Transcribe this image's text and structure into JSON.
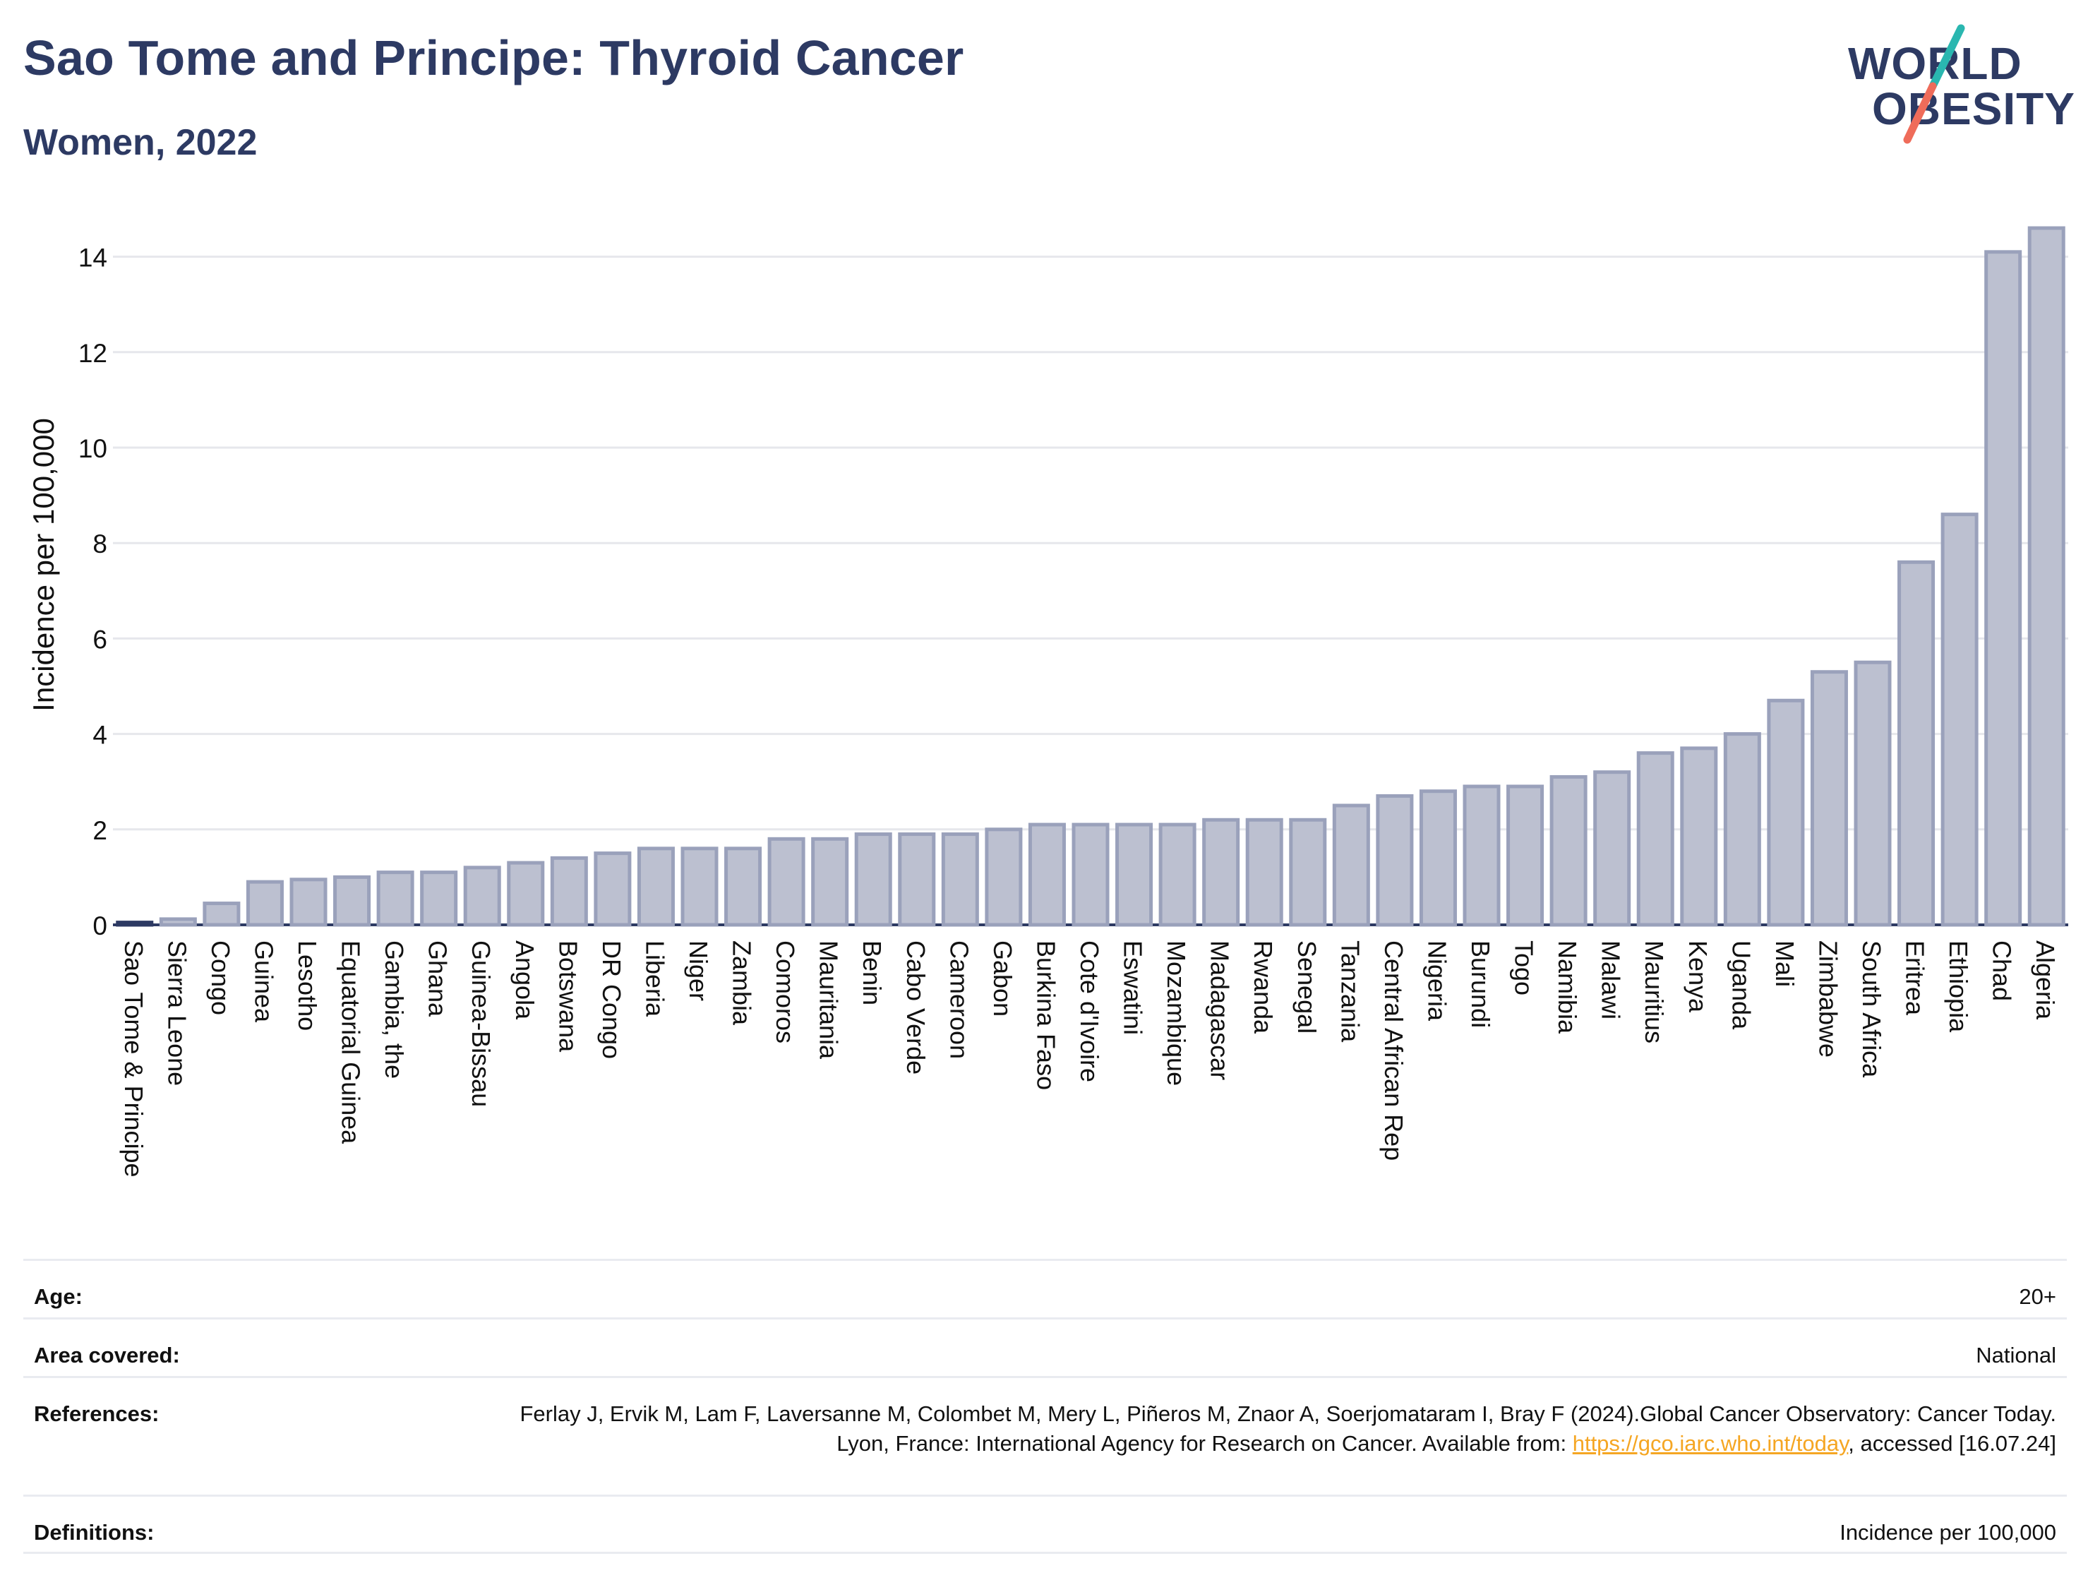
{
  "header": {
    "title": "Sao Tome and Principe: Thyroid Cancer",
    "subtitle": "Women, 2022"
  },
  "logo": {
    "line1": "WORLD",
    "line2": "OBESITY",
    "colors": {
      "text": "#2d3a63",
      "slash_top": "#2ab7b0",
      "slash_bottom": "#ef6c5a"
    }
  },
  "colors": {
    "bar_fill": "#bcc0d0",
    "bar_stroke": "#9aa1bb",
    "highlight": "#2d3a63",
    "grid": "#e6e7ec"
  },
  "chart_data": {
    "type": "bar",
    "ylabel": "Incidence per 100,000",
    "ylim": [
      0,
      15
    ],
    "yticks": [
      0,
      2,
      4,
      6,
      8,
      10,
      12,
      14
    ],
    "grid": true,
    "highlight": "Sao Tome & Principe",
    "categories": [
      "Sao Tome & Principe",
      "Sierra Leone",
      "Congo",
      "Guinea",
      "Lesotho",
      "Equatorial Guinea",
      "Gambia, the",
      "Ghana",
      "Guinea-Bissau",
      "Angola",
      "Botswana",
      "DR Congo",
      "Liberia",
      "Niger",
      "Zambia",
      "Comoros",
      "Mauritania",
      "Benin",
      "Cabo Verde",
      "Cameroon",
      "Gabon",
      "Burkina Faso",
      "Cote d'Ivoire",
      "Eswatini",
      "Mozambique",
      "Madagascar",
      "Rwanda",
      "Senegal",
      "Tanzania",
      "Central African Rep",
      "Nigeria",
      "Burundi",
      "Togo",
      "Namibia",
      "Malawi",
      "Mauritius",
      "Kenya",
      "Uganda",
      "Mali",
      "Zimbabwe",
      "South Africa",
      "Eritrea",
      "Ethiopia",
      "Chad",
      "Algeria"
    ],
    "values": [
      0.05,
      0.12,
      0.45,
      0.9,
      0.95,
      1.0,
      1.1,
      1.1,
      1.2,
      1.3,
      1.4,
      1.5,
      1.6,
      1.6,
      1.6,
      1.8,
      1.8,
      1.9,
      1.9,
      1.9,
      2.0,
      2.1,
      2.1,
      2.1,
      2.1,
      2.2,
      2.2,
      2.2,
      2.5,
      2.7,
      2.8,
      2.9,
      2.9,
      3.1,
      3.2,
      3.6,
      3.7,
      4.0,
      4.7,
      5.3,
      5.5,
      7.6,
      8.6,
      14.1,
      14.6
    ]
  },
  "meta": {
    "age_label": "Age:",
    "age_value": "20+",
    "area_label": "Area covered:",
    "area_value": "National",
    "references_label": "References:",
    "references_text_1": "Ferlay J, Ervik M, Lam F, Laversanne M, Colombet M, Mery L, Piñeros M, Znaor A, Soerjomataram I, Bray F (2024).Global Cancer Observatory: Cancer Today. Lyon, France: International Agency for Research on Cancer. Available from: ",
    "references_link": "https://gco.iarc.who.int/today",
    "references_text_2": ", accessed [16.07.24]",
    "definitions_label": "Definitions:",
    "definitions_value": "Incidence per 100,000"
  }
}
